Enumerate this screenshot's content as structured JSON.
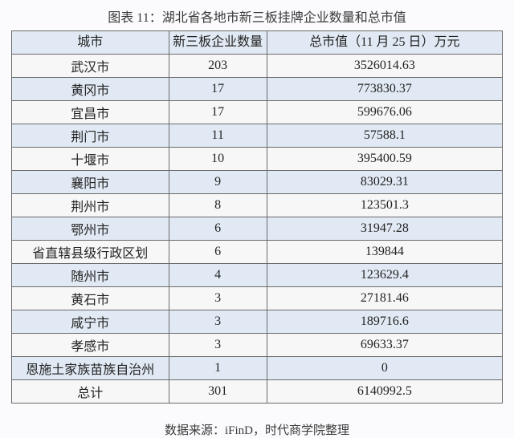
{
  "title": "图表 11：湖北省各地市新三板挂牌企业数量和总市值",
  "columns": {
    "city": "城市",
    "count": "新三板企业数量",
    "value": "总市值（11 月 25 日）万元"
  },
  "col_widths": {
    "city": "32%",
    "count": "20%",
    "value": "48%"
  },
  "colors": {
    "page_bg": "#fbfbfd",
    "header_bg": "#e1eaf4",
    "row_odd_bg": "#f7f7f8",
    "row_even_bg": "#e1eaf4",
    "border": "#6a6a6a",
    "text": "#232323",
    "title_text": "#3a3a3a"
  },
  "font_sizes": {
    "title": 16,
    "header": 16,
    "cell": 16,
    "footer": 15
  },
  "rows": [
    {
      "city": "武汉市",
      "count": "203",
      "value": "3526014.63"
    },
    {
      "city": "黄冈市",
      "count": "17",
      "value": "773830.37"
    },
    {
      "city": "宜昌市",
      "count": "17",
      "value": "599676.06"
    },
    {
      "city": "荆门市",
      "count": "11",
      "value": "57588.1"
    },
    {
      "city": "十堰市",
      "count": "10",
      "value": "395400.59"
    },
    {
      "city": "襄阳市",
      "count": "9",
      "value": "83029.31"
    },
    {
      "city": "荆州市",
      "count": "8",
      "value": "123501.3"
    },
    {
      "city": "鄂州市",
      "count": "6",
      "value": "31947.28"
    },
    {
      "city": "省直辖县级行政区划",
      "count": "6",
      "value": "139844"
    },
    {
      "city": "随州市",
      "count": "4",
      "value": "123629.4"
    },
    {
      "city": "黄石市",
      "count": "3",
      "value": "27181.46"
    },
    {
      "city": "咸宁市",
      "count": "3",
      "value": "189716.6"
    },
    {
      "city": "孝感市",
      "count": "3",
      "value": "69633.37"
    },
    {
      "city": "恩施土家族苗族自治州",
      "count": "1",
      "value": "0"
    },
    {
      "city": "总计",
      "count": "301",
      "value": "6140992.5"
    }
  ],
  "footer": "数据来源：iFinD，时代商学院整理"
}
